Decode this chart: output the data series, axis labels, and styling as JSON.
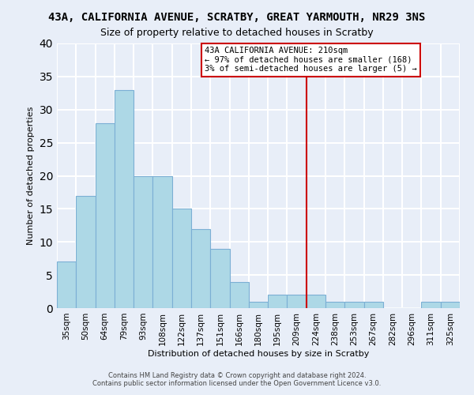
{
  "title": "43A, CALIFORNIA AVENUE, SCRATBY, GREAT YARMOUTH, NR29 3NS",
  "subtitle": "Size of property relative to detached houses in Scratby",
  "xlabel": "Distribution of detached houses by size in Scratby",
  "ylabel": "Number of detached properties",
  "bar_labels": [
    "35sqm",
    "50sqm",
    "64sqm",
    "79sqm",
    "93sqm",
    "108sqm",
    "122sqm",
    "137sqm",
    "151sqm",
    "166sqm",
    "180sqm",
    "195sqm",
    "209sqm",
    "224sqm",
    "238sqm",
    "253sqm",
    "267sqm",
    "282sqm",
    "296sqm",
    "311sqm",
    "325sqm"
  ],
  "bar_heights": [
    7,
    17,
    28,
    33,
    20,
    20,
    15,
    12,
    9,
    4,
    1,
    2,
    2,
    2,
    1,
    1,
    1,
    0,
    0,
    1,
    1
  ],
  "bar_color": "#add8e6",
  "bar_edge_color": "#7bafd4",
  "vline_x_index": 13,
  "vline_color": "#cc0000",
  "annotation_title": "43A CALIFORNIA AVENUE: 210sqm",
  "annotation_line1": "← 97% of detached houses are smaller (168)",
  "annotation_line2": "3% of semi-detached houses are larger (5) →",
  "annotation_box_facecolor": "#ffffff",
  "annotation_box_edgecolor": "#cc0000",
  "ylim": [
    0,
    40
  ],
  "yticks": [
    0,
    5,
    10,
    15,
    20,
    25,
    30,
    35,
    40
  ],
  "footer_line1": "Contains HM Land Registry data © Crown copyright and database right 2024.",
  "footer_line2": "Contains public sector information licensed under the Open Government Licence v3.0.",
  "background_color": "#e8eef8",
  "grid_color": "#ffffff",
  "title_fontsize": 10,
  "subtitle_fontsize": 9,
  "axis_label_fontsize": 8,
  "tick_fontsize": 7.5,
  "footer_fontsize": 6
}
